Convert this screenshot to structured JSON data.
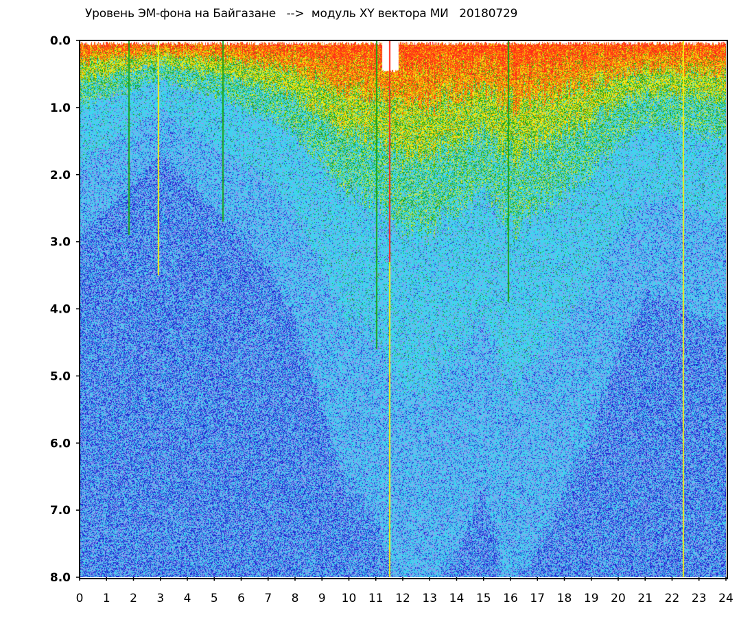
{
  "title": "Уровень ЭМ-фона на Байгазане   -->  модуль XY вектора МИ   20180729",
  "chart_data": {
    "type": "heatmap",
    "title": "Уровень ЭМ-фона на Байгазане   -->  модуль XY вектора МИ   20180729",
    "xlabel": "",
    "ylabel": "",
    "xlim": [
      0,
      24
    ],
    "ylim": [
      8.0,
      0.0
    ],
    "y_axis_inverted": true,
    "x_ticks": [
      "0",
      "1",
      "2",
      "3",
      "4",
      "5",
      "6",
      "7",
      "8",
      "9",
      "10",
      "11",
      "12",
      "13",
      "14",
      "15",
      "16",
      "17",
      "18",
      "19",
      "20",
      "21",
      "22",
      "23",
      "24"
    ],
    "y_ticks": [
      "0.0",
      "1.0",
      "2.0",
      "3.0",
      "4.0",
      "5.0",
      "6.0",
      "7.0",
      "8.0"
    ],
    "grid": false,
    "legend": "none",
    "colorscale": [
      "#ff2a1a",
      "#ff8800",
      "#f2ee14",
      "#1aa51a",
      "#3ad8ee",
      "#8ca0f0",
      "#1e28d2"
    ],
    "hourly_intensity": [
      {
        "hour": 0,
        "value": 0.7
      },
      {
        "hour": 1,
        "value": 0.6
      },
      {
        "hour": 2,
        "value": 0.5
      },
      {
        "hour": 3,
        "value": 0.4
      },
      {
        "hour": 4,
        "value": 0.5
      },
      {
        "hour": 5,
        "value": 0.6
      },
      {
        "hour": 6,
        "value": 0.7
      },
      {
        "hour": 7,
        "value": 0.8
      },
      {
        "hour": 8,
        "value": 1.0
      },
      {
        "hour": 9,
        "value": 1.3
      },
      {
        "hour": 10,
        "value": 1.6
      },
      {
        "hour": 11,
        "value": 1.7
      },
      {
        "hour": 12,
        "value": 2.0
      },
      {
        "hour": 13,
        "value": 2.0
      },
      {
        "hour": 14,
        "value": 1.8
      },
      {
        "hour": 15,
        "value": 1.6
      },
      {
        "hour": 16,
        "value": 2.0
      },
      {
        "hour": 17,
        "value": 1.8
      },
      {
        "hour": 18,
        "value": 1.6
      },
      {
        "hour": 19,
        "value": 1.4
      },
      {
        "hour": 20,
        "value": 1.1
      },
      {
        "hour": 21,
        "value": 0.9
      },
      {
        "hour": 22,
        "value": 0.9
      },
      {
        "hour": 23,
        "value": 1.0
      },
      {
        "hour": 24,
        "value": 1.0
      }
    ],
    "vertical_streaks": [
      {
        "hour": 1.8,
        "color": "#1aa51a",
        "depth": 2.9
      },
      {
        "hour": 2.9,
        "color": "#f2ee14",
        "depth": 3.5
      },
      {
        "hour": 5.3,
        "color": "#1aa51a",
        "depth": 2.7
      },
      {
        "hour": 11.0,
        "color": "#1aa51a",
        "depth": 4.6
      },
      {
        "hour": 11.5,
        "color": "#f2ee14",
        "depth": 8.0
      },
      {
        "hour": 11.5,
        "color": "#ff2a1a",
        "depth": 3.3
      },
      {
        "hour": 15.9,
        "color": "#1aa51a",
        "depth": 3.9
      },
      {
        "hour": 22.4,
        "color": "#f2ee14",
        "depth": 8.0
      }
    ]
  }
}
